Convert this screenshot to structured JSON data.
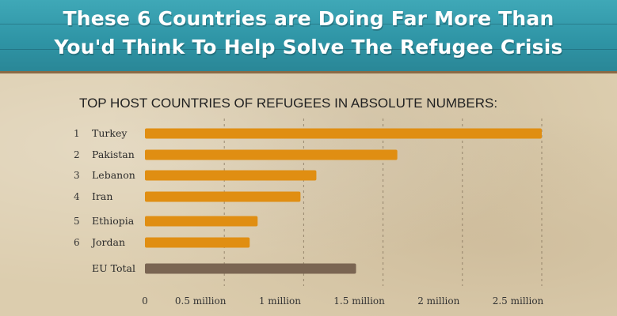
{
  "header": {
    "title_line1": "These 6 Countries are Doing Far More Than",
    "title_line2": "You'd Think To Help Solve The Refugee Crisis"
  },
  "colors": {
    "banner": "#2f95a6",
    "bar": "#e08e12",
    "bar_total": "#7a6552",
    "paper": "#dccdae"
  },
  "chart_data": {
    "type": "bar",
    "orientation": "horizontal",
    "title": "TOP HOST COUNTRIES OF REFUGEES IN ABSOLUTE NUMBERS:",
    "categories": [
      {
        "rank": "1",
        "name": "Turkey"
      },
      {
        "rank": "2",
        "name": "Pakistan"
      },
      {
        "rank": "3",
        "name": "Lebanon"
      },
      {
        "rank": "4",
        "name": "Iran"
      },
      {
        "rank": "5",
        "name": "Ethiopia"
      },
      {
        "rank": "6",
        "name": "Jordan"
      },
      {
        "rank": "",
        "name": "EU Total"
      }
    ],
    "values": [
      2500000,
      1590000,
      1080000,
      980000,
      710000,
      660000,
      1330000
    ],
    "xlim": [
      0,
      2500000
    ],
    "ticks": [
      {
        "value": 0,
        "label": "0"
      },
      {
        "value": 500000,
        "label": "0.5 million"
      },
      {
        "value": 1000000,
        "label": "1 million"
      },
      {
        "value": 1500000,
        "label": "1.5 million"
      },
      {
        "value": 2000000,
        "label": "2 million"
      },
      {
        "value": 2500000,
        "label": "2.5 million"
      }
    ],
    "grid": "vertical dashed"
  }
}
